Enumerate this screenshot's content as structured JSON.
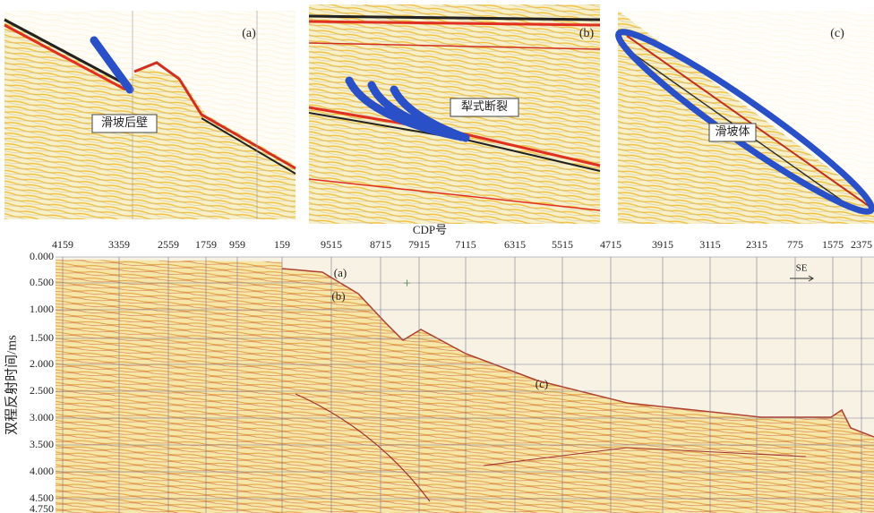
{
  "panels": [
    {
      "label": "(a)",
      "annotation": "滑坡后壁"
    },
    {
      "label": "(b)",
      "annotation": "犁式断裂"
    },
    {
      "label": "(c)",
      "annotation": "滑坡体"
    }
  ],
  "section": {
    "x_axis_title": "CDP号",
    "x_labels": [
      "4159",
      "3359",
      "2559",
      "1759",
      "959",
      "159",
      "9515",
      "8715",
      "7915",
      "7115",
      "6315",
      "5515",
      "4715",
      "3915",
      "3115",
      "2315",
      "775",
      "1575",
      "2375"
    ],
    "y_axis_title": "双程反射时间/ms",
    "y_labels": [
      "0.000",
      "0.500",
      "1.000",
      "1.500",
      "2.000",
      "2.500",
      "3.000",
      "3.500",
      "4.000",
      "4.500",
      "4.750"
    ],
    "markers": [
      "(a)",
      "(b)",
      "(c)"
    ],
    "direction": "SE"
  }
}
